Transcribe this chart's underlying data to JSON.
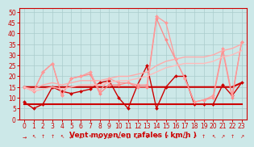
{
  "x": [
    0,
    1,
    2,
    3,
    4,
    5,
    6,
    7,
    8,
    9,
    10,
    11,
    12,
    13,
    14,
    15,
    16,
    17,
    18,
    19,
    20,
    21,
    22,
    23
  ],
  "series": [
    {
      "name": "dark_jagged",
      "color": "#cc0000",
      "linewidth": 1.0,
      "marker": "D",
      "markersize": 2.0,
      "y": [
        8,
        5,
        7,
        15,
        13,
        12,
        13,
        14,
        17,
        18,
        10,
        5,
        16,
        25,
        5,
        15,
        20,
        20,
        7,
        7,
        7,
        16,
        11,
        17
      ]
    },
    {
      "name": "dark_flat_low",
      "color": "#cc0000",
      "linewidth": 1.5,
      "marker": null,
      "markersize": 0,
      "y": [
        7,
        7,
        7,
        7,
        7,
        7,
        7,
        7,
        7,
        7,
        7,
        7,
        7,
        7,
        7,
        7,
        7,
        7,
        7,
        7,
        7,
        7,
        7,
        7
      ]
    },
    {
      "name": "dark_flat_mid",
      "color": "#cc0000",
      "linewidth": 1.5,
      "marker": null,
      "markersize": 0,
      "y": [
        15,
        15,
        15,
        15,
        15,
        15,
        15,
        15,
        15,
        15,
        15,
        15,
        15,
        15,
        15,
        15,
        15,
        15,
        15,
        15,
        15,
        15,
        15,
        17
      ]
    },
    {
      "name": "light_peak1",
      "color": "#ff8888",
      "linewidth": 0.9,
      "marker": "D",
      "markersize": 2.0,
      "y": [
        15,
        13,
        22,
        26,
        11,
        19,
        20,
        21,
        12,
        16,
        16,
        17,
        15,
        15,
        47,
        37,
        28,
        19,
        8,
        9,
        10,
        32,
        10,
        36
      ]
    },
    {
      "name": "light_peak2",
      "color": "#ff9999",
      "linewidth": 0.9,
      "marker": "D",
      "markersize": 2.0,
      "y": [
        15,
        13,
        22,
        26,
        11,
        19,
        20,
        22,
        13,
        19,
        17,
        17,
        16,
        16,
        48,
        45,
        28,
        19,
        8,
        9,
        11,
        33,
        11,
        36
      ]
    },
    {
      "name": "light_trend1",
      "color": "#ffaaaa",
      "linewidth": 1.0,
      "marker": null,
      "markersize": 0,
      "y": [
        15,
        14,
        16,
        17,
        16,
        17,
        18,
        18,
        18,
        19,
        20,
        20,
        21,
        22,
        25,
        27,
        28,
        29,
        29,
        29,
        30,
        32,
        33,
        35
      ]
    },
    {
      "name": "light_trend2",
      "color": "#ffbbbb",
      "linewidth": 1.0,
      "marker": null,
      "markersize": 0,
      "y": [
        15,
        13,
        14,
        15,
        14,
        15,
        16,
        16,
        16,
        17,
        18,
        18,
        19,
        20,
        22,
        24,
        25,
        26,
        26,
        26,
        27,
        29,
        30,
        32
      ]
    }
  ],
  "arrows": [
    "→",
    "↖",
    "↑",
    "↑",
    "↖",
    "←",
    "←",
    "↖",
    "←",
    "←",
    "←",
    "←",
    "←",
    "↙",
    "↗",
    "↗",
    "→",
    "→",
    "↗",
    "↑",
    "↖",
    "↗",
    "↑",
    "↗"
  ],
  "xlabel": "Vent moyen/en rafales ( km/h )",
  "xlim": [
    -0.5,
    23.5
  ],
  "ylim": [
    0,
    52
  ],
  "yticks": [
    0,
    5,
    10,
    15,
    20,
    25,
    30,
    35,
    40,
    45,
    50
  ],
  "xticks": [
    0,
    1,
    2,
    3,
    4,
    5,
    6,
    7,
    8,
    9,
    10,
    11,
    12,
    13,
    14,
    15,
    16,
    17,
    18,
    19,
    20,
    21,
    22,
    23
  ],
  "bg_color": "#cce8e8",
  "grid_color": "#aacccc",
  "xlabel_fontsize": 6.5,
  "tick_fontsize": 5.5,
  "arrow_fontsize": 4.5
}
